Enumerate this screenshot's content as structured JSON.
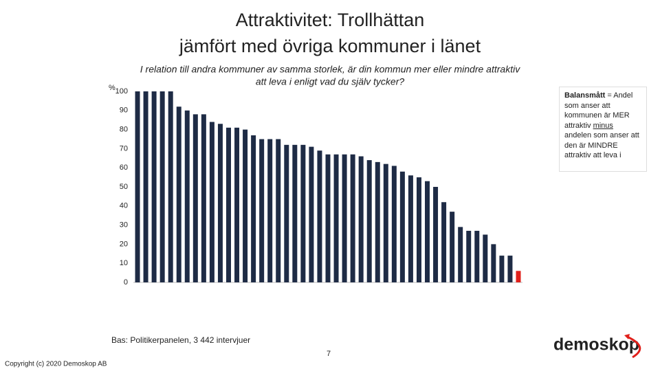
{
  "chart_data": {
    "type": "bar",
    "title": [
      "Attraktivitet: Trollhättan",
      "jämfört med övriga kommuner i länet"
    ],
    "subtitle": [
      "I relation till andra kommuner av samma storlek, är din kommun mer eller mindre attraktiv",
      "att leva i enligt vad du själv tycker?"
    ],
    "y_label": "%",
    "categories": [
      null,
      null,
      null,
      null,
      null,
      null,
      null,
      null,
      null,
      null,
      null,
      null,
      null,
      null,
      null,
      null,
      null,
      null,
      null,
      null,
      null,
      null,
      null,
      null,
      null,
      null,
      null,
      null,
      null,
      null,
      null,
      null,
      null,
      null,
      null,
      null,
      null,
      null,
      null,
      null,
      null,
      null,
      null,
      null,
      null,
      null,
      null
    ],
    "values": [
      100,
      100,
      100,
      100,
      100,
      92,
      90,
      88,
      88,
      84,
      83,
      81,
      81,
      80,
      77,
      75,
      75,
      75,
      72,
      72,
      72,
      71,
      69,
      67,
      67,
      67,
      67,
      66,
      64,
      63,
      62,
      61,
      58,
      56,
      55,
      53,
      50,
      42,
      37,
      29,
      27,
      27,
      25,
      20,
      14,
      14,
      6
    ],
    "colors": [
      "#1e2b45",
      "#1e2b45",
      "#1e2b45",
      "#1e2b45",
      "#1e2b45",
      "#1e2b45",
      "#1e2b45",
      "#1e2b45",
      "#1e2b45",
      "#1e2b45",
      "#1e2b45",
      "#1e2b45",
      "#1e2b45",
      "#1e2b45",
      "#1e2b45",
      "#1e2b45",
      "#1e2b45",
      "#1e2b45",
      "#1e2b45",
      "#1e2b45",
      "#1e2b45",
      "#1e2b45",
      "#1e2b45",
      "#1e2b45",
      "#1e2b45",
      "#1e2b45",
      "#1e2b45",
      "#1e2b45",
      "#1e2b45",
      "#1e2b45",
      "#1e2b45",
      "#1e2b45",
      "#1e2b45",
      "#1e2b45",
      "#1e2b45",
      "#1e2b45",
      "#1e2b45",
      "#1e2b45",
      "#1e2b45",
      "#1e2b45",
      "#1e2b45",
      "#1e2b45",
      "#1e2b45",
      "#1e2b45",
      "#1e2b45",
      "#1e2b45",
      "#e0201b"
    ],
    "ylim": [
      0,
      100
    ],
    "yticks": [
      0,
      10,
      20,
      30,
      40,
      50,
      60,
      70,
      80,
      90,
      100
    ],
    "grid": false,
    "note": [
      {
        "text": "Balansmått",
        "style": "bold"
      },
      {
        "text": " = Andel som anser att kommunen är MER attraktiv "
      },
      {
        "text": "minus",
        "style": "underline"
      },
      {
        "text": " andelen som anser att den är MINDRE attraktiv att leva i"
      }
    ],
    "source": "Bas: Politikerpanelen, 3 442 intervjuer"
  },
  "page_number": "7",
  "copyright": "Copyright (c) 2020 Demoskop AB",
  "logo": "demoskop"
}
